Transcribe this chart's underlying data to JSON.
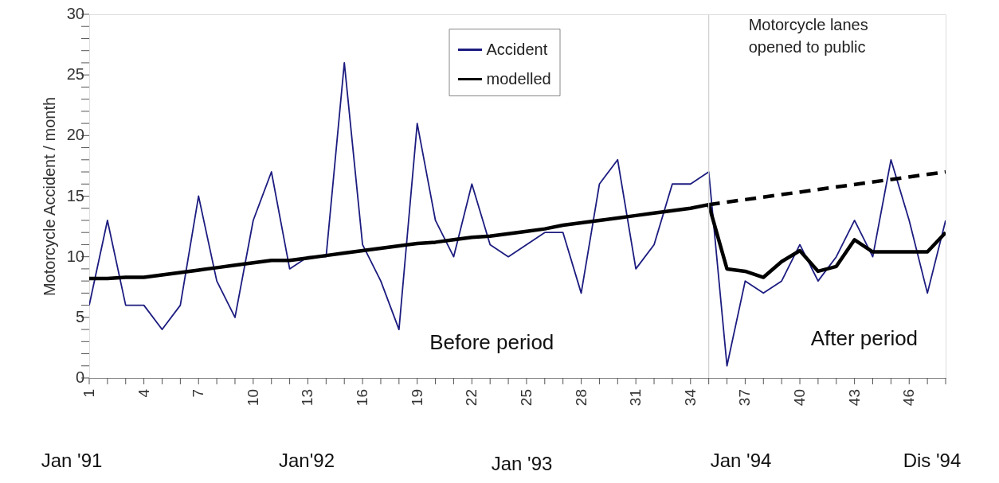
{
  "chart_data": {
    "type": "line",
    "ylabel": "Motorcycle Accident / month",
    "x": [
      1,
      2,
      3,
      4,
      5,
      6,
      7,
      8,
      9,
      10,
      11,
      12,
      13,
      14,
      15,
      16,
      17,
      18,
      19,
      20,
      21,
      22,
      23,
      24,
      25,
      26,
      27,
      28,
      29,
      30,
      31,
      32,
      33,
      34,
      35,
      36,
      37,
      38,
      39,
      40,
      41,
      42,
      43,
      44,
      45,
      46,
      47,
      48
    ],
    "series": [
      {
        "name": "Accident",
        "color": "#1c1c80",
        "values": [
          6,
          13,
          6,
          6,
          4,
          6,
          15,
          8,
          5,
          13,
          17,
          9,
          10,
          10,
          26,
          11,
          8,
          4,
          21,
          13,
          10,
          16,
          11,
          10,
          11,
          12,
          12,
          7,
          16,
          18,
          9,
          11,
          16,
          16,
          17,
          1,
          8,
          7,
          8,
          11,
          8,
          10,
          13,
          10,
          18,
          13,
          7,
          13
        ]
      },
      {
        "name": "modelled",
        "color": "#000000",
        "values": [
          8.2,
          8.2,
          8.3,
          8.3,
          8.5,
          8.7,
          8.9,
          9.1,
          9.3,
          9.5,
          9.7,
          9.7,
          9.9,
          10.1,
          10.3,
          10.5,
          10.7,
          10.9,
          11.1,
          11.2,
          11.4,
          11.6,
          11.7,
          11.9,
          12.1,
          12.3,
          12.6,
          12.8,
          13.0,
          13.2,
          13.4,
          13.6,
          13.8,
          14.0,
          14.3,
          9,
          8.8,
          8.3,
          9.6,
          10.5,
          8.8,
          9.2,
          11.4,
          10.4,
          10.4,
          10.4,
          10.4,
          12
        ]
      },
      {
        "color": "#000000",
        "line_style": "dashed",
        "x": [
          35,
          48
        ],
        "values": [
          14.3,
          17
        ]
      }
    ],
    "xlim": [
      1,
      48
    ],
    "xticks": [
      1,
      {
        "value": 2,
        "label": null
      },
      {
        "value": 3,
        "label": null
      },
      4,
      {
        "value": 5,
        "label": null
      },
      {
        "value": 6,
        "label": null
      },
      7,
      {
        "value": 8,
        "label": null
      },
      {
        "value": 9,
        "label": null
      },
      10,
      {
        "value": 11,
        "label": null
      },
      {
        "value": 12,
        "label": null
      },
      13,
      {
        "value": 14,
        "label": null
      },
      {
        "value": 15,
        "label": null
      },
      16,
      {
        "value": 17,
        "label": null
      },
      {
        "value": 18,
        "label": null
      },
      19,
      {
        "value": 20,
        "label": null
      },
      {
        "value": 21,
        "label": null
      },
      22,
      {
        "value": 23,
        "label": null
      },
      {
        "value": 24,
        "label": null
      },
      25,
      {
        "value": 26,
        "label": null
      },
      {
        "value": 27,
        "label": null
      },
      28,
      {
        "value": 29,
        "label": null
      },
      {
        "value": 30,
        "label": null
      },
      31,
      {
        "value": 32,
        "label": null
      },
      {
        "value": 33,
        "label": null
      },
      34,
      {
        "value": 35,
        "label": null
      },
      {
        "value": 36,
        "label": null
      },
      37,
      {
        "value": 38,
        "label": null
      },
      {
        "value": 39,
        "label": null
      },
      40,
      {
        "value": 41,
        "label": null
      },
      {
        "value": 42,
        "label": null
      },
      43,
      {
        "value": 44,
        "label": null
      },
      {
        "value": 45,
        "label": null
      },
      46,
      {
        "value": 47,
        "label": null
      },
      {
        "value": 48,
        "label": null
      }
    ],
    "ylim": [
      0,
      30
    ],
    "yticks": [
      0,
      {
        "value": 1,
        "label": null
      },
      {
        "value": 2,
        "label": null
      },
      {
        "value": 3,
        "label": null
      },
      {
        "value": 4,
        "label": null
      },
      5,
      {
        "value": 6,
        "label": null
      },
      {
        "value": 7,
        "label": null
      },
      {
        "value": 8,
        "label": null
      },
      {
        "value": 9,
        "label": null
      },
      10,
      {
        "value": 11,
        "label": null
      },
      {
        "value": 12,
        "label": null
      },
      {
        "value": 13,
        "label": null
      },
      {
        "value": 14,
        "label": null
      },
      15,
      {
        "value": 16,
        "label": null
      },
      {
        "value": 17,
        "label": null
      },
      {
        "value": 18,
        "label": null
      },
      {
        "value": 19,
        "label": null
      },
      20,
      {
        "value": 21,
        "label": null
      },
      {
        "value": 22,
        "label": null
      },
      {
        "value": 23,
        "label": null
      },
      {
        "value": 24,
        "label": null
      },
      25,
      {
        "value": 26,
        "label": null
      },
      {
        "value": 27,
        "label": null
      },
      {
        "value": 28,
        "label": null
      },
      {
        "value": 29,
        "label": null
      },
      30
    ],
    "ref_lines": [
      {
        "axis": "x",
        "value": 35,
        "label": "Motorcycle lanes opened to public",
        "color": "#d0d0d0"
      }
    ],
    "annotations": [
      "Before period",
      "After period",
      "Jan '91",
      "Jan'92",
      "Jan '93",
      "Jan '94",
      "Dis '94"
    ],
    "legend": "top",
    "grid": false,
    "marker": "none",
    "line_style": "solid"
  }
}
